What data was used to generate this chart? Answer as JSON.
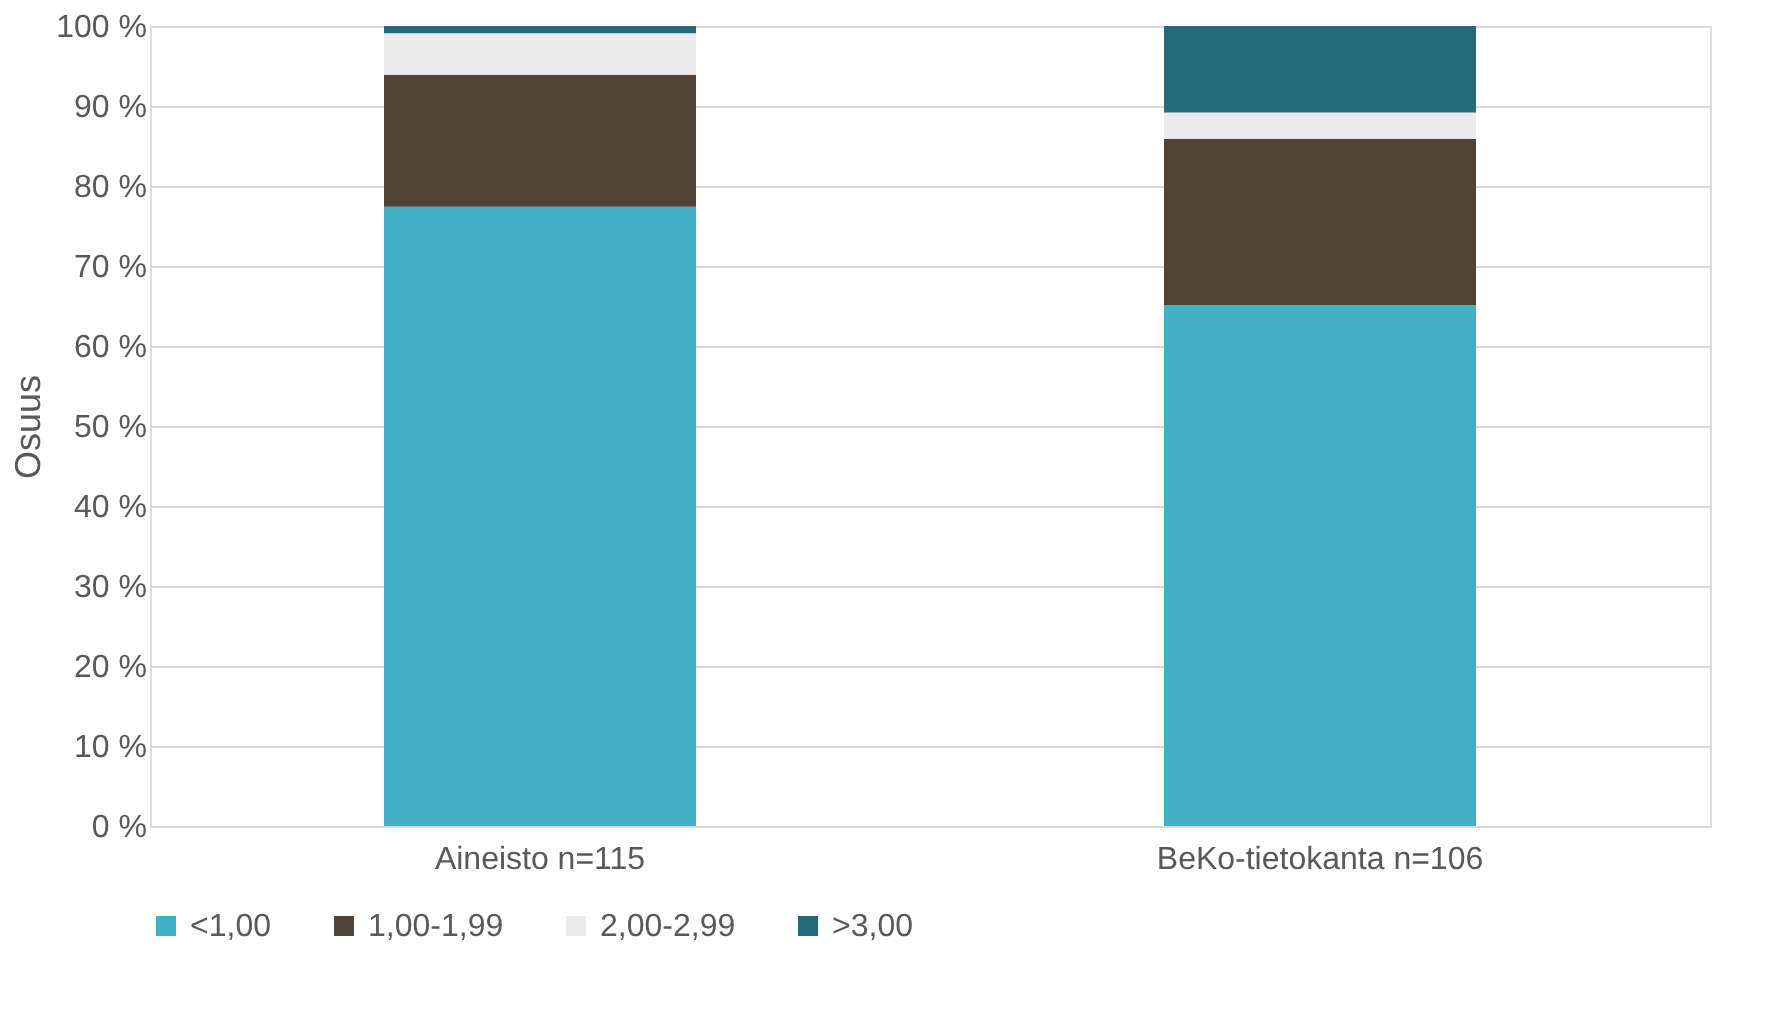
{
  "chart_data": {
    "type": "bar",
    "stacked": true,
    "ylabel": "Osuus",
    "categories": [
      "Aineisto n=115",
      "BeKo-tietokanta n=106"
    ],
    "series": [
      {
        "name": "<1,00",
        "color": "#42afc4",
        "values": [
          77.4,
          65.1
        ]
      },
      {
        "name": "1,00-1,99",
        "color": "#4f4337",
        "values": [
          16.5,
          20.8
        ]
      },
      {
        "name": "2,00-2,99",
        "color": "#ebebeb",
        "values": [
          5.2,
          3.3
        ]
      },
      {
        "name": ">3,00",
        "color": "#246a78",
        "values": [
          0.9,
          10.8
        ]
      }
    ],
    "ylim": [
      0,
      100
    ],
    "yticks": [
      {
        "value": 0,
        "label": "0 %"
      },
      {
        "value": 10,
        "label": "10 %"
      },
      {
        "value": 20,
        "label": "20 %"
      },
      {
        "value": 30,
        "label": "30 %"
      },
      {
        "value": 40,
        "label": "40 %"
      },
      {
        "value": 50,
        "label": "50 %"
      },
      {
        "value": 60,
        "label": "60 %"
      },
      {
        "value": 70,
        "label": "70 %"
      },
      {
        "value": 80,
        "label": "80 %"
      },
      {
        "value": 90,
        "label": "90 %"
      },
      {
        "value": 100,
        "label": "100 %"
      }
    ],
    "grid": "y",
    "legend": "bottom"
  }
}
